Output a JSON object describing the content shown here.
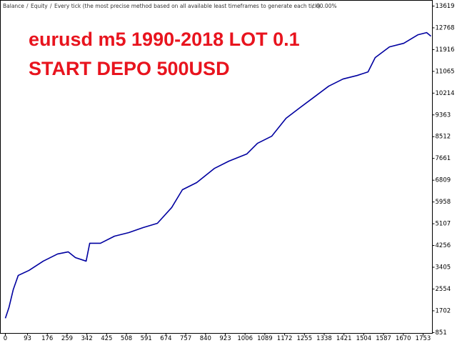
{
  "chart_data": {
    "type": "line",
    "separator": "/",
    "equity_label": "Equity",
    "equity_color": "#00a000",
    "model_text": "Every tick (the most precise method based on all available least timeframes to generate each tick)",
    "quality_text": "90.00%",
    "annotations": [
      "eurusd m5 1990-2018 LOT 0.1",
      "START DEPO 500USD"
    ],
    "x": [
      0,
      15,
      33,
      54,
      99,
      159,
      219,
      264,
      294,
      339,
      354,
      399,
      458,
      518,
      578,
      638,
      698,
      743,
      803,
      878,
      938,
      1013,
      1058,
      1118,
      1178,
      1237,
      1297,
      1357,
      1417,
      1477,
      1522,
      1552,
      1612,
      1672,
      1732,
      1768,
      1786
    ],
    "series": [
      {
        "name": "Balance",
        "color": "#0000a0",
        "values": [
          1410,
          1828,
          2527,
          3085,
          3281,
          3644,
          3923,
          4007,
          3783,
          3644,
          4342,
          4342,
          4621,
          4761,
          4956,
          5124,
          5739,
          6437,
          6716,
          7274,
          7554,
          7833,
          8252,
          8531,
          9230,
          9649,
          10068,
          10487,
          10766,
          10906,
          11045,
          11604,
          12023,
          12163,
          12498,
          12582,
          12442
        ]
      }
    ],
    "xlim": [
      -21,
      1792
    ],
    "xticks": [
      0,
      93,
      176,
      259,
      342,
      425,
      508,
      591,
      674,
      757,
      840,
      923,
      1006,
      1089,
      1172,
      1255,
      1338,
      1421,
      1504,
      1587,
      1670,
      1753
    ],
    "ylim": [
      820,
      13842
    ],
    "yticks": [
      851,
      1702,
      2554,
      3405,
      4256,
      5107,
      5958,
      6809,
      7661,
      8512,
      9363,
      10214,
      11065,
      11916,
      12768,
      13619
    ],
    "grid": false
  }
}
